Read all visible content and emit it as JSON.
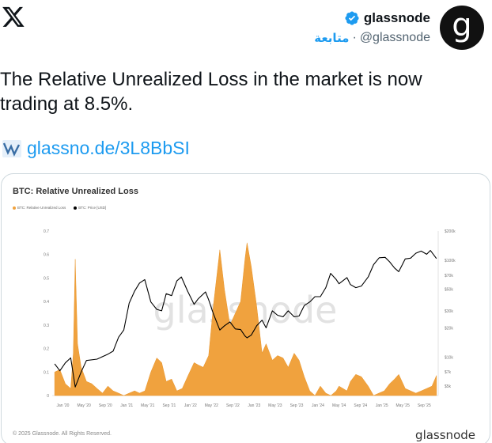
{
  "tweet": {
    "display_name": "glassnode",
    "handle": "@glassnode",
    "separator": "·",
    "follow_label": "متابعة",
    "avatar_letter": "g",
    "text": "The Relative Unrealized Loss in the market is now trading at 8.5%.",
    "link_text": "glassno.de/3L8BbSI"
  },
  "colors": {
    "accent": "#1d9bf0",
    "verified": "#1d9bf0",
    "loss_fill": "#f0a23e",
    "price_line": "#000000"
  },
  "icons": {
    "logo": "x-logo-icon",
    "verified": "verified-badge-icon",
    "link": "glassnode-link-icon"
  },
  "chart_data": {
    "type": "area",
    "title": "BTC: Relative Unrealized Loss",
    "watermark": "glassnode",
    "copyright": "© 2025 Glassnode. All Rights Reserved.",
    "brand": "glassnode",
    "series": [
      {
        "name": "BTC: Relative Unrealized Loss",
        "axis": "left",
        "x": [
          "2019-11-15",
          "2019-12-15",
          "2020-01-15",
          "2020-02-15",
          "2020-03-01",
          "2020-03-12",
          "2020-03-25",
          "2020-04-15",
          "2020-05-15",
          "2020-06-15",
          "2020-07-15",
          "2020-08-15",
          "2020-09-15",
          "2020-10-15",
          "2020-11-15",
          "2020-12-15",
          "2021-01-15",
          "2021-02-15",
          "2021-03-15",
          "2021-04-15",
          "2021-05-19",
          "2021-06-22",
          "2021-07-20",
          "2021-08-15",
          "2021-09-15",
          "2021-10-15",
          "2021-11-15",
          "2021-12-15",
          "2022-01-22",
          "2022-02-15",
          "2022-03-15",
          "2022-04-15",
          "2022-05-12",
          "2022-06-18",
          "2022-07-15",
          "2022-08-15",
          "2022-09-15",
          "2022-10-15",
          "2022-11-09",
          "2022-11-21",
          "2022-12-15",
          "2023-01-15",
          "2023-02-15",
          "2023-03-10",
          "2023-04-15",
          "2023-05-15",
          "2023-06-15",
          "2023-07-15",
          "2023-08-18",
          "2023-09-15",
          "2023-10-15",
          "2023-11-15",
          "2023-12-15",
          "2024-01-15",
          "2024-02-15",
          "2024-03-15",
          "2024-04-15",
          "2024-05-01",
          "2024-06-15",
          "2024-07-05",
          "2024-08-05",
          "2024-09-06",
          "2024-10-15",
          "2024-11-15",
          "2024-12-15",
          "2025-01-15",
          "2025-02-15",
          "2025-03-15",
          "2025-04-08",
          "2025-05-15",
          "2025-06-15",
          "2025-07-15",
          "2025-08-15",
          "2025-09-15",
          "2025-10-15",
          "2025-11-10"
        ],
        "values": [
          0.1,
          0.11,
          0.05,
          0.03,
          0.18,
          0.58,
          0.22,
          0.12,
          0.06,
          0.05,
          0.03,
          0.01,
          0.04,
          0.02,
          0.01,
          0.0,
          0.01,
          0.02,
          0.01,
          0.02,
          0.1,
          0.16,
          0.14,
          0.06,
          0.07,
          0.02,
          0.03,
          0.08,
          0.14,
          0.13,
          0.12,
          0.17,
          0.38,
          0.62,
          0.45,
          0.3,
          0.35,
          0.4,
          0.58,
          0.65,
          0.55,
          0.38,
          0.18,
          0.22,
          0.15,
          0.17,
          0.16,
          0.12,
          0.18,
          0.15,
          0.08,
          0.02,
          0.0,
          0.04,
          0.01,
          0.0,
          0.02,
          0.04,
          0.02,
          0.06,
          0.09,
          0.08,
          0.04,
          0.0,
          0.01,
          0.02,
          0.05,
          0.07,
          0.09,
          0.03,
          0.02,
          0.01,
          0.02,
          0.03,
          0.04,
          0.085
        ]
      },
      {
        "name": "BTC: Price [USD]",
        "axis": "right",
        "x": [
          "2019-11-15",
          "2019-12-15",
          "2020-01-15",
          "2020-02-15",
          "2020-03-12",
          "2020-04-15",
          "2020-05-15",
          "2020-07-15",
          "2020-09-15",
          "2020-10-15",
          "2020-11-15",
          "2020-12-15",
          "2021-01-15",
          "2021-02-15",
          "2021-03-15",
          "2021-04-14",
          "2021-05-19",
          "2021-06-22",
          "2021-07-20",
          "2021-08-15",
          "2021-09-15",
          "2021-10-15",
          "2021-11-10",
          "2021-12-15",
          "2022-01-22",
          "2022-02-15",
          "2022-03-28",
          "2022-04-15",
          "2022-05-12",
          "2022-06-18",
          "2022-07-15",
          "2022-08-15",
          "2022-09-15",
          "2022-10-15",
          "2022-11-09",
          "2022-11-21",
          "2022-12-15",
          "2023-01-15",
          "2023-02-15",
          "2023-03-10",
          "2023-04-15",
          "2023-05-15",
          "2023-06-15",
          "2023-07-15",
          "2023-08-18",
          "2023-09-15",
          "2023-10-15",
          "2023-11-15",
          "2023-12-15",
          "2024-01-15",
          "2024-02-15",
          "2024-03-14",
          "2024-04-15",
          "2024-05-01",
          "2024-06-15",
          "2024-07-05",
          "2024-08-05",
          "2024-09-06",
          "2024-10-15",
          "2024-11-15",
          "2024-12-17",
          "2025-01-20",
          "2025-02-15",
          "2025-03-15",
          "2025-04-08",
          "2025-05-15",
          "2025-06-15",
          "2025-07-15",
          "2025-08-14",
          "2025-09-15",
          "2025-10-06",
          "2025-11-10"
        ],
        "values": [
          8500,
          7200,
          8700,
          9800,
          4900,
          7000,
          9200,
          9500,
          10700,
          11500,
          16000,
          19000,
          36000,
          48000,
          58000,
          63000,
          37000,
          31000,
          30000,
          45000,
          43000,
          61000,
          67000,
          48000,
          35000,
          40000,
          47000,
          39000,
          28000,
          19000,
          21000,
          23000,
          19500,
          19200,
          16500,
          15800,
          16800,
          21000,
          24000,
          20000,
          30000,
          27000,
          26000,
          30000,
          26000,
          26500,
          34000,
          37000,
          42000,
          42000,
          52000,
          73000,
          63000,
          57000,
          66000,
          56000,
          52000,
          54000,
          67000,
          90000,
          106000,
          107000,
          96000,
          83000,
          76000,
          103000,
          105000,
          118000,
          124000,
          115000,
          126000,
          104000
        ]
      }
    ],
    "x_tick_labels": [
      "Jan '20",
      "May '20",
      "Sep '20",
      "Jan '21",
      "May '21",
      "Sep '21",
      "Jan '22",
      "May '22",
      "Sep '22",
      "Jan '23",
      "May '23",
      "Sep '23",
      "Jan '24",
      "May '24",
      "Sep '24",
      "Jan '25",
      "May '25",
      "Sep '25"
    ],
    "x_tick_dates": [
      "2020-01-01",
      "2020-05-01",
      "2020-09-01",
      "2021-01-01",
      "2021-05-01",
      "2021-09-01",
      "2022-01-01",
      "2022-05-01",
      "2022-09-01",
      "2023-01-01",
      "2023-05-01",
      "2023-09-01",
      "2024-01-01",
      "2024-05-01",
      "2024-09-01",
      "2025-01-01",
      "2025-05-01",
      "2025-09-01"
    ],
    "x_range": [
      "2019-11-01",
      "2025-11-20"
    ],
    "y_left": {
      "ticks": [
        0,
        0.1,
        0.2,
        0.3,
        0.4,
        0.5,
        0.6,
        0.7
      ],
      "labels": [
        "0",
        "0.1",
        "0.2",
        "0.3",
        "0.4",
        "0.5",
        "0.6",
        "0.7"
      ],
      "range": [
        0,
        0.7
      ]
    },
    "y_right": {
      "scale": "log",
      "ticks": [
        5000,
        7000,
        10000,
        20000,
        30000,
        50000,
        70000,
        100000,
        200000
      ],
      "labels": [
        "$5k",
        "$7k",
        "$10k",
        "$20k",
        "$30k",
        "$50k",
        "$70k",
        "$100k",
        "$200k"
      ],
      "range": [
        4000,
        200000
      ]
    },
    "grid": false,
    "legend": "top-left"
  }
}
